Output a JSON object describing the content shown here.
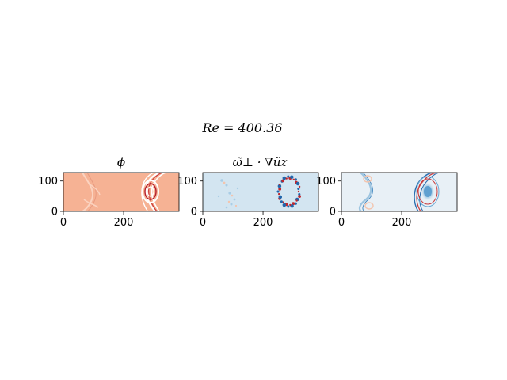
{
  "figure": {
    "suptitle": "Re = 400.36"
  },
  "chart_data": [
    {
      "type": "heatmap",
      "title": "ϕ",
      "colormap": "RdBu_r",
      "background": "#f6b294",
      "xlim": [
        0,
        384
      ],
      "ylim": [
        0,
        128
      ],
      "xticks": [
        0,
        200
      ],
      "yticks": [
        0,
        100
      ],
      "xlabel": "",
      "ylabel": ""
    },
    {
      "type": "heatmap",
      "title": "ω̃⊥ · ∇ũz",
      "colormap": "RdBu_r",
      "background": "#d3e5f1",
      "xlim": [
        0,
        384
      ],
      "ylim": [
        0,
        128
      ],
      "xticks": [
        0,
        200
      ],
      "yticks": [
        0,
        100
      ],
      "xlabel": "",
      "ylabel": ""
    },
    {
      "type": "heatmap",
      "title": "",
      "colormap": "RdBu_r",
      "background": "#e8f0f6",
      "xlim": [
        0,
        384
      ],
      "ylim": [
        0,
        128
      ],
      "xticks": [
        0,
        200
      ],
      "yticks": [
        0,
        100
      ],
      "xlabel": "",
      "ylabel": ""
    }
  ]
}
